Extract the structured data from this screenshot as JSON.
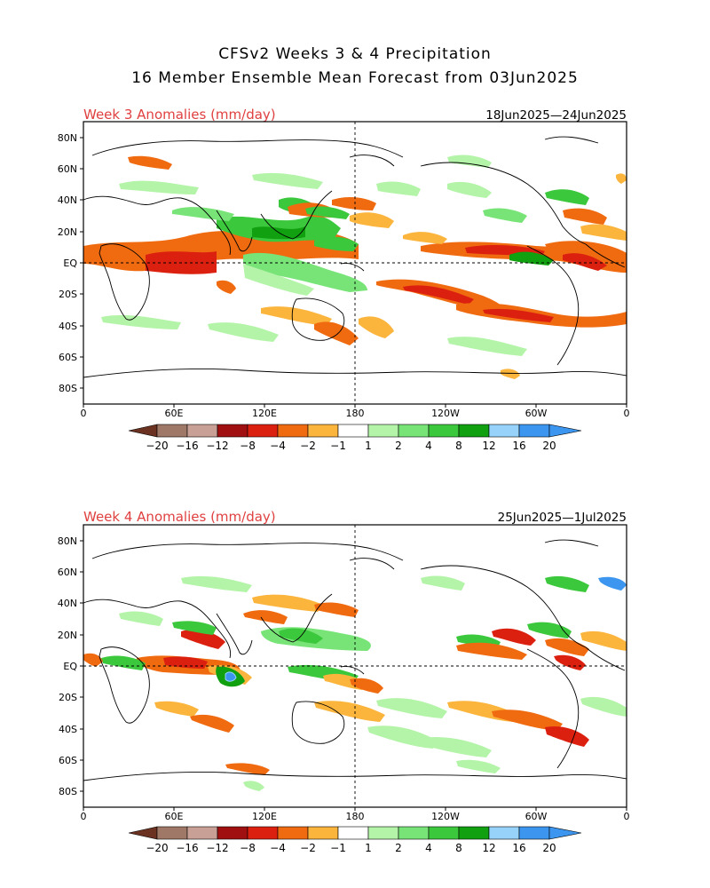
{
  "title": {
    "line1": "CFSv2 Weeks 3 & 4 Precipitation",
    "line2": "16 Member Ensemble Mean Forecast from 03Jun2025"
  },
  "colors": {
    "title": "#000000",
    "panel_label": "#e04040",
    "coast": "#000000",
    "negative_anomaly": [
      "#6b3222",
      "#a07868",
      "#c8a096",
      "#a01010",
      "#dc2010",
      "#f06a10",
      "#fbb43c"
    ],
    "positive_anomaly": [
      "#b4f4a8",
      "#78e478",
      "#3cc83c",
      "#10a010",
      "#96d2fa",
      "#3c96f0"
    ]
  },
  "panels": [
    {
      "label": "Week 3 Anomalies (mm/day)",
      "date_range": "18Jun2025—24Jun2025",
      "lat_ticks": [
        "80N",
        "60N",
        "40N",
        "20N",
        "EQ",
        "20S",
        "40S",
        "60S",
        "80S"
      ],
      "lon_ticks": [
        "0",
        "60E",
        "120E",
        "180",
        "120W",
        "60W",
        "0"
      ]
    },
    {
      "label": "Week 4 Anomalies (mm/day)",
      "date_range": "25Jun2025—1Jul2025",
      "lat_ticks": [
        "80N",
        "60N",
        "40N",
        "20N",
        "EQ",
        "20S",
        "40S",
        "60S",
        "80S"
      ],
      "lon_ticks": [
        "0",
        "60E",
        "120E",
        "180",
        "120W",
        "60W",
        "0"
      ]
    }
  ],
  "colorbar_labels": [
    "−20",
    "−16",
    "−12",
    "−8",
    "−4",
    "−2",
    "−1",
    "1",
    "2",
    "4",
    "8",
    "12",
    "16",
    "20"
  ]
}
